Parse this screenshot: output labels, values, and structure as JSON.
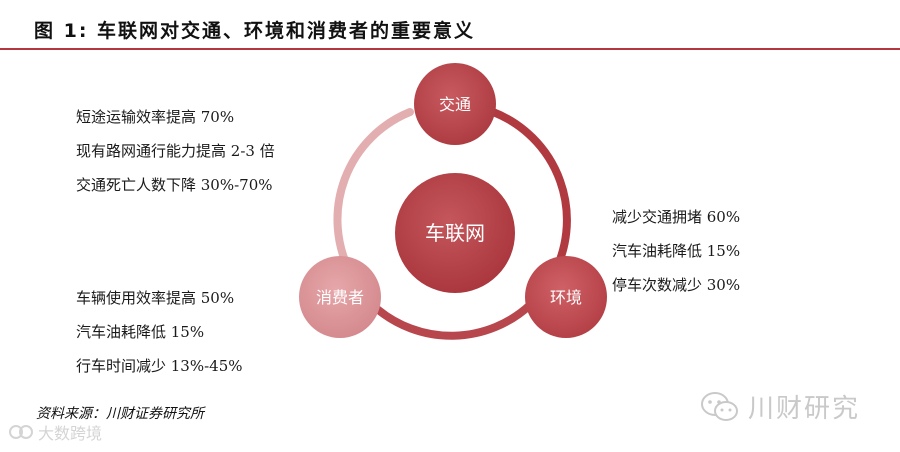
{
  "title": "图 1:   车联网对交通、环境和消费者的重要意义",
  "center_label": "车联网",
  "nodes": {
    "traffic": "交通",
    "environment": "环境",
    "consumer": "消费者"
  },
  "traffic_benefits": [
    "短途运输效率提高 70%",
    "现有路网通行能力提高 2-3 倍",
    "交通死亡人数下降 30%-70%"
  ],
  "environment_benefits": [
    "减少交通拥堵 60%",
    "汽车油耗降低 15%",
    "停车次数减少 30%"
  ],
  "consumer_benefits": [
    "车辆使用效率提高 50%",
    "汽车油耗降低 15%",
    "行车时间减少 13%-45%"
  ],
  "source": "资料来源：川财证券研究所",
  "watermark_right": "川财研究",
  "watermark_left": "大数跨境",
  "colors": {
    "accent": "#b5373e",
    "center": "#b13a40",
    "traffic": "#b84248",
    "environment": "#c0474d",
    "consumer": "#d98a8e",
    "ring_dark": "#b13a40",
    "ring_light": "#e3aeb0"
  }
}
